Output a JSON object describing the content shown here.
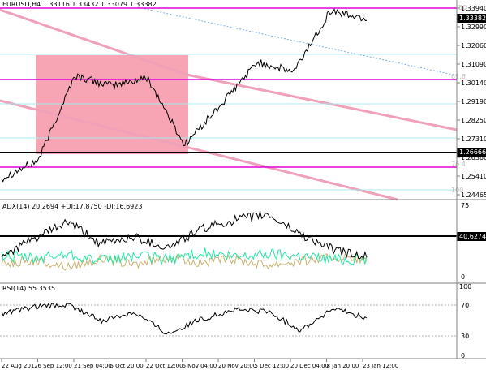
{
  "main_window": {
    "header": "EURUSD,H4  1.33116 1.33432 1.33079 1.33382",
    "current_price": "1.33382",
    "price_ticks": [
      "1.33940",
      "1.32990",
      "1.32060",
      "1.31090",
      "1.30140",
      "1.29190",
      "1.28250",
      "1.27310",
      "1.26360",
      "1.25410",
      "1.24465"
    ],
    "marked_level": "1.26666",
    "fib_labels": {
      "fib50": "50",
      "fib618": "61.8",
      "fib764": "76.4",
      "fib100": "100"
    },
    "colors": {
      "fib_line": "#e000e0",
      "rect_fill": "#f7a5b4",
      "channel": "#f0a0b8",
      "cyan": "#a8e8f0",
      "trend_dotted": "#80b0e0"
    }
  },
  "adx_window": {
    "header": "ADX(14) 20.2694 +DI:17.8750 -DI:16.6923",
    "ticks": [
      "75",
      "0"
    ],
    "level_label": "40.6274",
    "series_names": [
      "ADX",
      "+DI",
      "-DI"
    ],
    "colors": {
      "adx": "#000000",
      "plus_di": "#20e8a0",
      "minus_di": "#c8b070"
    }
  },
  "rsi_window": {
    "header": "RSI(14) 55.3535",
    "ticks": [
      "100",
      "70",
      "30",
      "0"
    ]
  },
  "time_axis": [
    "22 Aug 2012",
    "6 Sep 12:00",
    "21 Sep 04:00",
    "5 Oct 20:00",
    "22 Oct 12:00",
    "6 Nov 04:00",
    "20 Nov 20:00",
    "5 Dec 12:00",
    "20 Dec 04:00",
    "8 Jan 20:00",
    "23 Jan 12:00"
  ],
  "chart_data": [
    {
      "type": "line",
      "title": "EURUSD,H4",
      "x": [
        "22 Aug 2012",
        "6 Sep 12:00",
        "21 Sep 04:00",
        "5 Oct 20:00",
        "22 Oct 12:00",
        "6 Nov 04:00",
        "20 Nov 20:00",
        "5 Dec 12:00",
        "20 Dec 04:00",
        "8 Jan 20:00",
        "23 Jan 12:00"
      ],
      "series": [
        {
          "name": "EURUSD",
          "values": [
            1.253,
            1.262,
            1.305,
            1.3,
            1.304,
            1.27,
            1.29,
            1.312,
            1.307,
            1.338,
            1.3338
          ]
        }
      ],
      "ylim": [
        1.24465,
        1.3394
      ],
      "levels": {
        "50": 1.3394,
        "61.8": 1.3014,
        "76.4": 1.25885,
        "marked": 1.26666
      }
    },
    {
      "type": "line",
      "title": "ADX(14)",
      "series": [
        {
          "name": "ADX",
          "values": [
            22,
            40,
            58,
            34,
            42,
            30,
            50,
            60,
            66,
            45,
            28,
            20.27
          ]
        }
      ],
      "ylim": [
        0,
        75
      ],
      "level": 40.6274
    },
    {
      "type": "line",
      "title": "RSI(14)",
      "series": [
        {
          "name": "RSI",
          "values": [
            62,
            72,
            75,
            52,
            65,
            33,
            54,
            68,
            66,
            38,
            70,
            55.35
          ]
        }
      ],
      "ylim": [
        0,
        100
      ],
      "levels": [
        30,
        70
      ]
    }
  ]
}
